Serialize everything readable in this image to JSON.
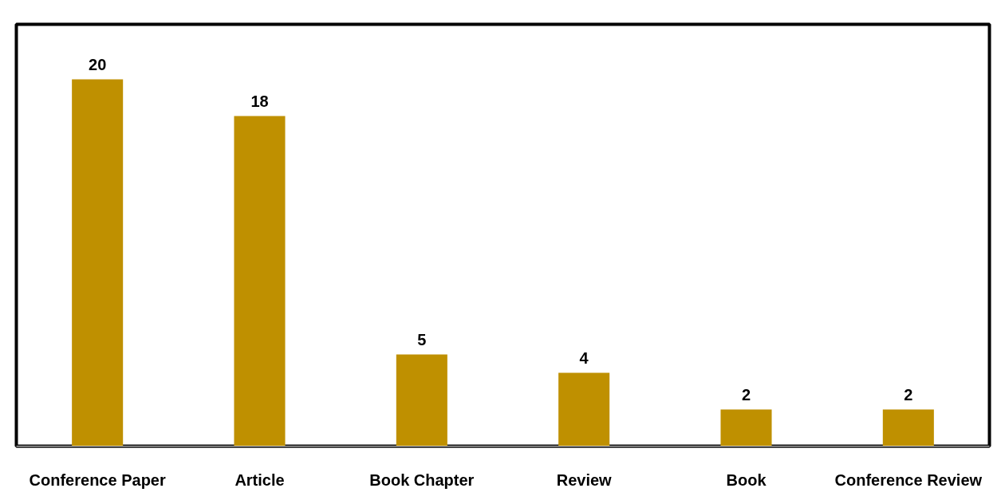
{
  "chart_data": {
    "type": "bar",
    "categories": [
      "Conference Paper",
      "Article",
      "Book Chapter",
      "Review",
      "Book",
      "Conference Review"
    ],
    "values": [
      20,
      18,
      5,
      4,
      2,
      2
    ],
    "color": "#bf9000",
    "data_labels": true,
    "grid": false
  }
}
